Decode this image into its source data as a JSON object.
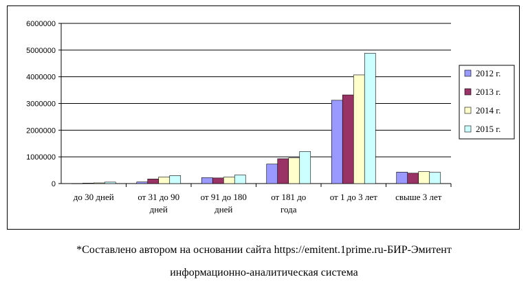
{
  "chart_data": {
    "type": "bar",
    "title": "",
    "xlabel": "",
    "ylabel": "",
    "ylim": [
      0,
      6000000
    ],
    "yticks": [
      0,
      1000000,
      2000000,
      3000000,
      4000000,
      5000000,
      6000000
    ],
    "grid": true,
    "legend_position": "right",
    "categories": [
      [
        "до 30 дней"
      ],
      [
        "от 31 до 90",
        "дней"
      ],
      [
        "от 91 до 180",
        "дней"
      ],
      [
        "от 181 до",
        "года"
      ],
      [
        "от 1 до 3 лет"
      ],
      [
        "свыше 3 лет"
      ]
    ],
    "series": [
      {
        "name": "2012 г.",
        "color": "#9999ff",
        "values": [
          5000,
          60000,
          220000,
          730000,
          3120000,
          430000
        ]
      },
      {
        "name": "2013 г.",
        "color": "#993366",
        "values": [
          15000,
          170000,
          210000,
          930000,
          3320000,
          390000
        ]
      },
      {
        "name": "2014 г.",
        "color": "#ffffcc",
        "values": [
          25000,
          250000,
          240000,
          960000,
          4070000,
          450000
        ]
      },
      {
        "name": "2015 г.",
        "color": "#ccffff",
        "values": [
          55000,
          300000,
          320000,
          1200000,
          4880000,
          420000
        ]
      }
    ]
  },
  "caption": {
    "line1": "*Составлено автором на основании сайта https://emitent.1prime.ru-БИР-Эмитент",
    "line2": "информационно-аналитическая  система"
  }
}
